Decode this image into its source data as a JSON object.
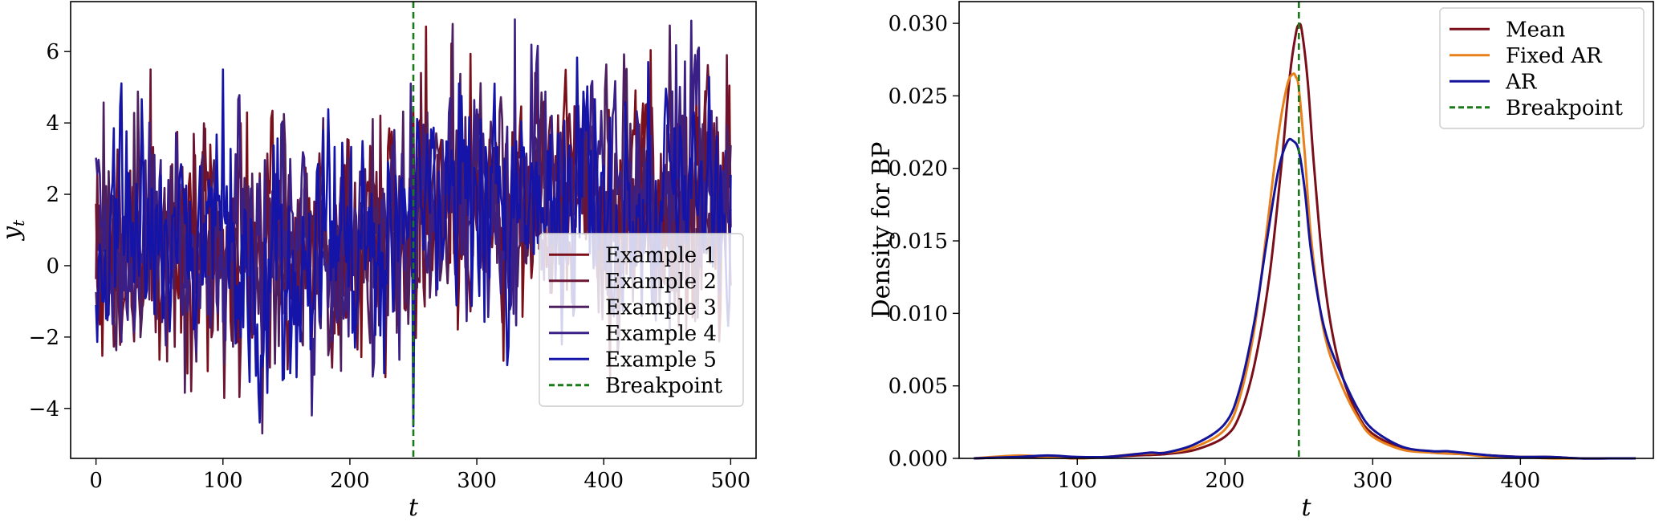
{
  "chart_data": [
    {
      "type": "line",
      "xlabel": "t",
      "ylabel": "y",
      "ylabel_sub": "t",
      "xlim": [
        -20,
        520
      ],
      "ylim": [
        -5.4,
        7.4
      ],
      "xticks": [
        0,
        100,
        200,
        300,
        400,
        500
      ],
      "xtick_labels": [
        "0",
        "100",
        "200",
        "300",
        "400",
        "500"
      ],
      "yticks": [
        -4,
        -2,
        0,
        2,
        4,
        6
      ],
      "ytick_labels": [
        "−4",
        "−2",
        "0",
        "2",
        "4",
        "6"
      ],
      "breakpoint": 250,
      "breakpoint_label": "Breakpoint",
      "breakpoint_color": "#1a7a1a",
      "legend_position": "lower-right",
      "series": [
        {
          "name": "Example 1",
          "color": "#7a0f1a"
        },
        {
          "name": "Example 2",
          "color": "#6b1433"
        },
        {
          "name": "Example 3",
          "color": "#4e1f5e"
        },
        {
          "name": "Example 4",
          "color": "#3a1f86"
        },
        {
          "name": "Example 5",
          "color": "#1414a8"
        }
      ],
      "segments": {
        "before": {
          "x_range": [
            0,
            250
          ],
          "mean": 0.5,
          "sd": 1.6,
          "min": -4.7,
          "max": 5.5
        },
        "after": {
          "x_range": [
            250,
            500
          ],
          "mean": 2.0,
          "sd": 1.6,
          "min": -4.7,
          "max": 6.9
        }
      },
      "notable_points": [
        {
          "series": "Example 5",
          "x": 250,
          "y": -4.5
        },
        {
          "series": "Example 1",
          "x": 260,
          "y": 6.7
        },
        {
          "series": "Example 4",
          "x": 330,
          "y": 6.9
        },
        {
          "series": "Example 2",
          "x": 43,
          "y": 5.5
        },
        {
          "series": "Example 5",
          "x": 100,
          "y": 5.5
        },
        {
          "series": "Example 2",
          "x": 497,
          "y": 5.9
        }
      ]
    },
    {
      "type": "line",
      "xlabel": "t",
      "ylabel": "Density for BP",
      "xlim": [
        20,
        490
      ],
      "ylim": [
        0,
        0.0315
      ],
      "xticks": [
        100,
        200,
        300,
        400
      ],
      "xtick_labels": [
        "100",
        "200",
        "300",
        "400"
      ],
      "yticks": [
        0.0,
        0.005,
        0.01,
        0.015,
        0.02,
        0.025,
        0.03
      ],
      "ytick_labels": [
        "0.000",
        "0.005",
        "0.010",
        "0.015",
        "0.020",
        "0.025",
        "0.030"
      ],
      "breakpoint": 250,
      "breakpoint_label": "Breakpoint",
      "breakpoint_color": "#1a7a1a",
      "legend_position": "upper-right",
      "series": [
        {
          "name": "Mean",
          "color": "#7a0f1a",
          "x": [
            30,
            60,
            80,
            100,
            120,
            140,
            160,
            180,
            200,
            210,
            220,
            230,
            238,
            244,
            248,
            250,
            252,
            256,
            260,
            266,
            272,
            280,
            290,
            300,
            320,
            340,
            360,
            380,
            400,
            420,
            440,
            460,
            478
          ],
          "y": [
            0.0,
            0.0001,
            0.0001,
            0.0,
            0.0001,
            0.0002,
            0.0003,
            0.0006,
            0.0015,
            0.003,
            0.0065,
            0.0125,
            0.02,
            0.0265,
            0.0293,
            0.0299,
            0.0295,
            0.026,
            0.0205,
            0.0135,
            0.009,
            0.0055,
            0.003,
            0.0017,
            0.0007,
            0.0004,
            0.0003,
            0.0002,
            0.0001,
            0.0001,
            0.0,
            0.0,
            0.0
          ]
        },
        {
          "name": "Fixed AR",
          "color": "#e8801c",
          "x": [
            30,
            60,
            80,
            100,
            120,
            140,
            160,
            180,
            200,
            210,
            220,
            228,
            236,
            242,
            246,
            248,
            250,
            254,
            258,
            264,
            270,
            280,
            290,
            300,
            320,
            340,
            360,
            380,
            400,
            420,
            440,
            460,
            478
          ],
          "y": [
            0.0,
            0.0002,
            0.0001,
            0.0,
            0.0001,
            0.0003,
            0.0004,
            0.0008,
            0.002,
            0.0042,
            0.009,
            0.0155,
            0.0222,
            0.0257,
            0.0265,
            0.0263,
            0.0255,
            0.021,
            0.0155,
            0.0105,
            0.0075,
            0.0048,
            0.0028,
            0.0015,
            0.0006,
            0.0004,
            0.0003,
            0.0001,
            0.0001,
            0.0,
            0.0,
            0.0,
            0.0
          ]
        },
        {
          "name": "AR",
          "color": "#14149a",
          "x": [
            30,
            60,
            80,
            100,
            120,
            140,
            150,
            160,
            180,
            200,
            210,
            220,
            228,
            236,
            242,
            246,
            250,
            254,
            258,
            264,
            270,
            280,
            290,
            300,
            320,
            340,
            350,
            360,
            380,
            400,
            420,
            440,
            460,
            478
          ],
          "y": [
            0.0,
            0.0001,
            0.0002,
            0.0001,
            0.0001,
            0.0003,
            0.0004,
            0.0004,
            0.001,
            0.0024,
            0.0048,
            0.0095,
            0.0148,
            0.0198,
            0.0218,
            0.0219,
            0.0212,
            0.0185,
            0.0145,
            0.0105,
            0.008,
            0.0055,
            0.0034,
            0.002,
            0.0008,
            0.0005,
            0.0005,
            0.0004,
            0.0002,
            0.0001,
            0.0001,
            0.0,
            0.0,
            0.0
          ]
        }
      ]
    }
  ]
}
